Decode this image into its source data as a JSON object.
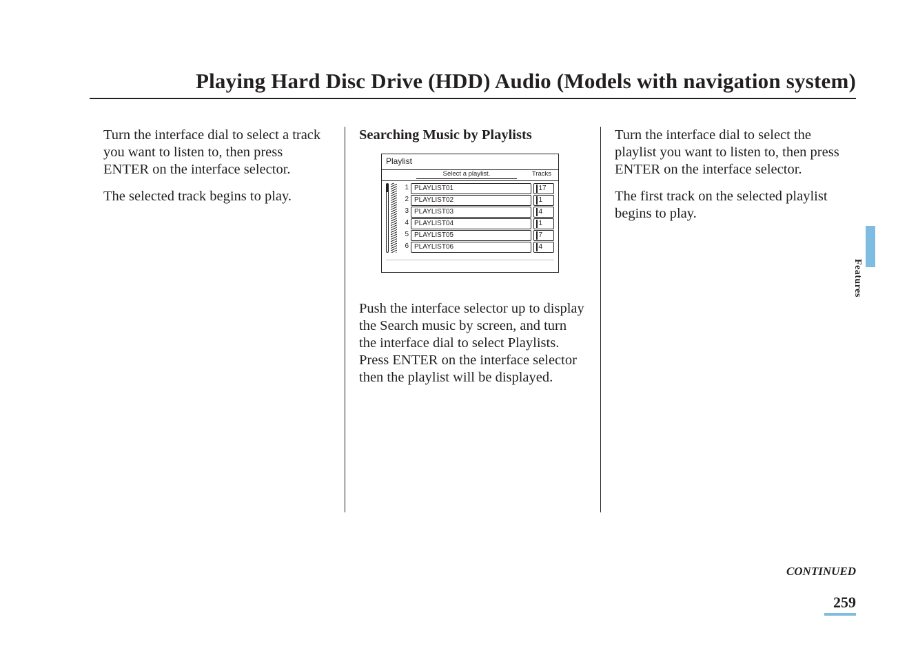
{
  "title": "Playing Hard Disc Drive (HDD) Audio (Models with navigation system)",
  "col1": {
    "p1": "Turn the interface dial to select a track you want to listen to, then press ENTER on the interface selector.",
    "p2": "The selected track begins to play."
  },
  "col2": {
    "heading": "Searching Music by Playlists",
    "screen": {
      "title": "Playlist",
      "select_label": "Select a playlist.",
      "tracks_label": "Tracks",
      "rows": [
        {
          "idx": "1",
          "name": "PLAYLIST01",
          "count": "17"
        },
        {
          "idx": "2",
          "name": "PLAYLIST02",
          "count": "1"
        },
        {
          "idx": "3",
          "name": "PLAYLIST03",
          "count": "4"
        },
        {
          "idx": "4",
          "name": "PLAYLIST04",
          "count": "1"
        },
        {
          "idx": "5",
          "name": "PLAYLIST05",
          "count": "7"
        },
        {
          "idx": "6",
          "name": "PLAYLIST06",
          "count": "4"
        }
      ]
    },
    "p1": "Push the interface selector up to display the Search music by screen, and turn the interface dial to select Playlists. Press ENTER on the interface selector then the playlist will be displayed."
  },
  "col3": {
    "p1": "Turn the interface dial to select the playlist you want to listen to, then press ENTER on the interface selector.",
    "p2": "The first track on the selected playlist begins to play."
  },
  "side_tab": "Features",
  "continued": "CONTINUED",
  "page_number": "259",
  "colors": {
    "text": "#231f20",
    "accent": "#7fbce1",
    "bg": "#ffffff"
  }
}
